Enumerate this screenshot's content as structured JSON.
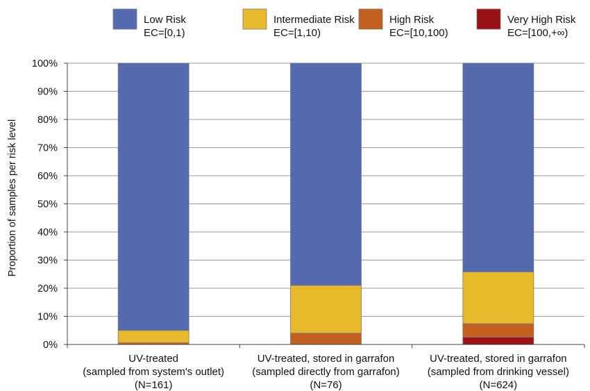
{
  "chart_data": {
    "type": "bar",
    "stacked": true,
    "ylabel": "Proportion of samples per risk level",
    "ylim": [
      0,
      100
    ],
    "yticks": [
      0,
      10,
      20,
      30,
      40,
      50,
      60,
      70,
      80,
      90,
      100
    ],
    "ytick_labels": [
      "0%",
      "10%",
      "20%",
      "30%",
      "40%",
      "50%",
      "60%",
      "70%",
      "80%",
      "90%",
      "100%"
    ],
    "grid": true,
    "legend_position": "top",
    "categories": [
      [
        "UV-treated",
        "(sampled from system's outlet)",
        "(N=161)"
      ],
      [
        "UV-treated, stored in garrafon",
        "(sampled directly from garrafon)",
        "(N=76)"
      ],
      [
        "UV-treated, stored in garrafon",
        "(sampled from drinking vessel)",
        "(N=624)"
      ]
    ],
    "series": [
      {
        "name": "Very High Risk",
        "range": "EC=[100,+∞)",
        "color": "#9b1116",
        "values": [
          0,
          0,
          2.6
        ]
      },
      {
        "name": "High Risk",
        "range": "EC=[10,100)",
        "color": "#c4601f",
        "values": [
          0.6,
          4.0,
          4.8
        ]
      },
      {
        "name": "Intermediate Risk",
        "range": "EC=[1,10)",
        "color": "#e8b92c",
        "values": [
          4.4,
          17.0,
          18.4
        ]
      },
      {
        "name": "Low Risk",
        "range": "EC=[0,1)",
        "color": "#5369b0",
        "values": [
          95.0,
          79.0,
          74.2
        ]
      }
    ]
  }
}
